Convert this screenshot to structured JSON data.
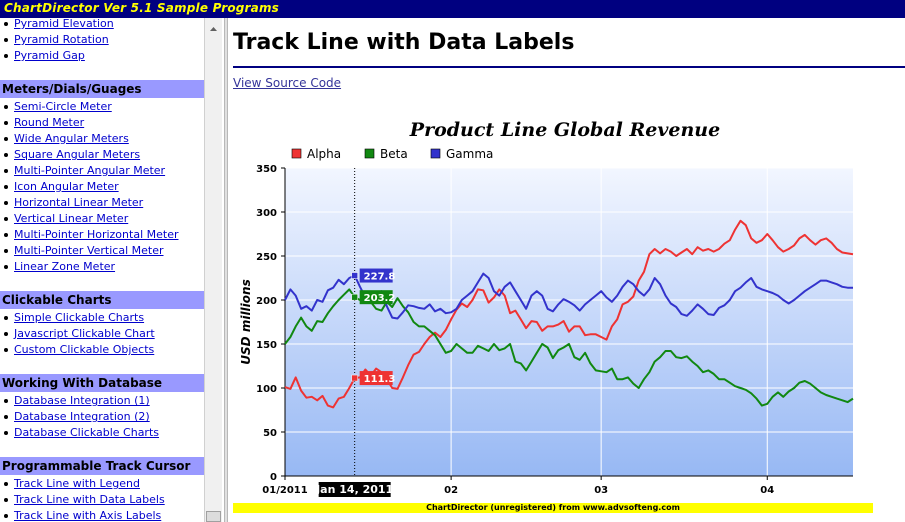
{
  "app": {
    "title": "ChartDirector Ver 5.1 Sample Programs"
  },
  "sidebar": {
    "top_items": [
      {
        "label": "Pyramid Elevation",
        "id": "pyramid-elevation"
      },
      {
        "label": "Pyramid Rotation",
        "id": "pyramid-rotation"
      },
      {
        "label": "Pyramid Gap",
        "id": "pyramid-gap"
      }
    ],
    "sections": [
      {
        "title": "Meters/Dials/Guages",
        "items": [
          "Semi-Circle Meter",
          "Round Meter",
          "Wide Angular Meters",
          "Square Angular Meters",
          "Multi-Pointer Angular Meter",
          "Icon Angular Meter",
          "Horizontal Linear Meter",
          "Vertical Linear Meter",
          "Multi-Pointer Horizontal Meter",
          "Multi-Pointer Vertical Meter",
          "Linear Zone Meter"
        ]
      },
      {
        "title": "Clickable Charts",
        "items": [
          "Simple Clickable Charts",
          "Javascript Clickable Chart",
          "Custom Clickable Objects"
        ]
      },
      {
        "title": "Working With Database",
        "items": [
          "Database Integration (1)",
          "Database Integration (2)",
          "Database Clickable Charts"
        ]
      },
      {
        "title": "Programmable Track Cursor",
        "items": [
          "Track Line with Legend",
          "Track Line with Data Labels",
          "Track Line with Axis Labels"
        ]
      }
    ]
  },
  "main": {
    "page_title": "Track Line with Data Labels",
    "source_link": "View Source Code",
    "footer": "ChartDirector (unregistered) from www.advsofteng.com"
  },
  "colors": {
    "alpha": "#ee3333",
    "beta": "#118811",
    "gamma": "#3333cc",
    "header_bg": "#000080",
    "section_bg": "#9999ff"
  },
  "chart_data": {
    "type": "line",
    "title": "Product Line Global Revenue",
    "ylabel": "USD millions",
    "ylim": [
      0,
      350
    ],
    "yticks": [
      0,
      50,
      100,
      150,
      200,
      250,
      300,
      350
    ],
    "xtick_labels": [
      "01/2011",
      "02",
      "03",
      "04"
    ],
    "legend_position": "top-left",
    "track": {
      "label": "Jan 14, 2011",
      "values": {
        "Alpha": "111.3",
        "Beta": "203.2",
        "Gamma": "227.8"
      }
    },
    "x": [
      "2011-01-01",
      "2011-01-02",
      "2011-01-03",
      "2011-01-04",
      "2011-01-05",
      "2011-01-06",
      "2011-01-07",
      "2011-01-08",
      "2011-01-09",
      "2011-01-10",
      "2011-01-11",
      "2011-01-12",
      "2011-01-13",
      "2011-01-14",
      "2011-01-15",
      "2011-01-16",
      "2011-01-17",
      "2011-01-18",
      "2011-01-19",
      "2011-01-20",
      "2011-01-21",
      "2011-01-22",
      "2011-01-23",
      "2011-01-24",
      "2011-01-25",
      "2011-01-26",
      "2011-01-27",
      "2011-01-28",
      "2011-01-29",
      "2011-01-30",
      "2011-01-31",
      "2011-02-01",
      "2011-02-02",
      "2011-02-03",
      "2011-02-04",
      "2011-02-05",
      "2011-02-06",
      "2011-02-07",
      "2011-02-08",
      "2011-02-09",
      "2011-02-10",
      "2011-02-11",
      "2011-02-12",
      "2011-02-13",
      "2011-02-14",
      "2011-02-15",
      "2011-02-16",
      "2011-02-17",
      "2011-02-18",
      "2011-02-19",
      "2011-02-20",
      "2011-02-21",
      "2011-02-22",
      "2011-02-23",
      "2011-02-24",
      "2011-02-25",
      "2011-02-26",
      "2011-02-27",
      "2011-02-28",
      "2011-03-01",
      "2011-03-02",
      "2011-03-03",
      "2011-03-04",
      "2011-03-05",
      "2011-03-06",
      "2011-03-07",
      "2011-03-08",
      "2011-03-09",
      "2011-03-10",
      "2011-03-11",
      "2011-03-12",
      "2011-03-13",
      "2011-03-14",
      "2011-03-15",
      "2011-03-16",
      "2011-03-17",
      "2011-03-18",
      "2011-03-19",
      "2011-03-20",
      "2011-03-21",
      "2011-03-22",
      "2011-03-23",
      "2011-03-24",
      "2011-03-25",
      "2011-03-26",
      "2011-03-27",
      "2011-03-28",
      "2011-03-29",
      "2011-03-30",
      "2011-03-31",
      "2011-04-01",
      "2011-04-02",
      "2011-04-03",
      "2011-04-04",
      "2011-04-05",
      "2011-04-06",
      "2011-04-07",
      "2011-04-08",
      "2011-04-09",
      "2011-04-10",
      "2011-04-11",
      "2011-04-12",
      "2011-04-13",
      "2011-04-14",
      "2011-04-15",
      "2011-04-16",
      "2011-04-17"
    ],
    "series": [
      {
        "name": "Alpha",
        "values": [
          101,
          99,
          112,
          97,
          89,
          90,
          86,
          91,
          80,
          78,
          88,
          90,
          100,
          111.3,
          112,
          121,
          114,
          122,
          118,
          110,
          100,
          99,
          112,
          126,
          138,
          141,
          150,
          158,
          163,
          158,
          166,
          178,
          189,
          196,
          192,
          200,
          212,
          211,
          197,
          203,
          212,
          205,
          185,
          188,
          178,
          168,
          176,
          175,
          165,
          170,
          170,
          172,
          176,
          164,
          170,
          170,
          160,
          161,
          161,
          158,
          155,
          170,
          178,
          195,
          198,
          204,
          222,
          232,
          252,
          258,
          253,
          258,
          255,
          250,
          254,
          258,
          252,
          260,
          256,
          258,
          255,
          258,
          264,
          268,
          280,
          290,
          285,
          270,
          265,
          268,
          275,
          268,
          260,
          255,
          258,
          262,
          270,
          274,
          268,
          263,
          268,
          270,
          265,
          258,
          254,
          253,
          252
        ]
      },
      {
        "name": "Beta",
        "values": [
          150,
          158,
          170,
          180,
          170,
          165,
          176,
          175,
          185,
          193,
          200,
          206,
          212,
          203.2,
          200,
          206,
          198,
          190,
          188,
          198,
          192,
          202,
          193,
          186,
          175,
          170,
          170,
          165,
          160,
          150,
          140,
          142,
          150,
          145,
          140,
          140,
          148,
          145,
          142,
          150,
          143,
          145,
          150,
          130,
          128,
          120,
          130,
          140,
          150,
          146,
          134,
          143,
          146,
          150,
          135,
          132,
          140,
          128,
          120,
          119,
          118,
          122,
          110,
          110,
          112,
          105,
          100,
          110,
          118,
          130,
          135,
          142,
          142,
          135,
          134,
          136,
          130,
          125,
          118,
          120,
          116,
          110,
          110,
          106,
          102,
          100,
          98,
          94,
          88,
          80,
          82,
          90,
          95,
          90,
          96,
          100,
          106,
          108,
          105,
          100,
          95,
          92,
          90,
          88,
          86,
          84,
          88
        ]
      },
      {
        "name": "Gamma",
        "values": [
          200,
          212,
          205,
          190,
          193,
          188,
          200,
          198,
          211,
          214,
          223,
          218,
          225,
          227.8,
          215,
          203,
          200,
          202,
          210,
          193,
          180,
          179,
          186,
          194,
          193,
          191,
          190,
          195,
          187,
          190,
          185,
          186,
          190,
          200,
          205,
          210,
          220,
          230,
          225,
          210,
          205,
          215,
          220,
          210,
          200,
          190,
          205,
          210,
          205,
          190,
          187,
          195,
          201,
          198,
          194,
          188,
          195,
          200,
          205,
          210,
          203,
          198,
          205,
          215,
          222,
          218,
          210,
          205,
          212,
          225,
          218,
          205,
          196,
          192,
          184,
          182,
          188,
          195,
          190,
          184,
          183,
          191,
          194,
          200,
          210,
          214,
          220,
          225,
          215,
          212,
          210,
          208,
          205,
          200,
          196,
          200,
          205,
          210,
          214,
          218,
          222,
          222,
          220,
          218,
          215,
          214,
          214
        ]
      }
    ]
  }
}
